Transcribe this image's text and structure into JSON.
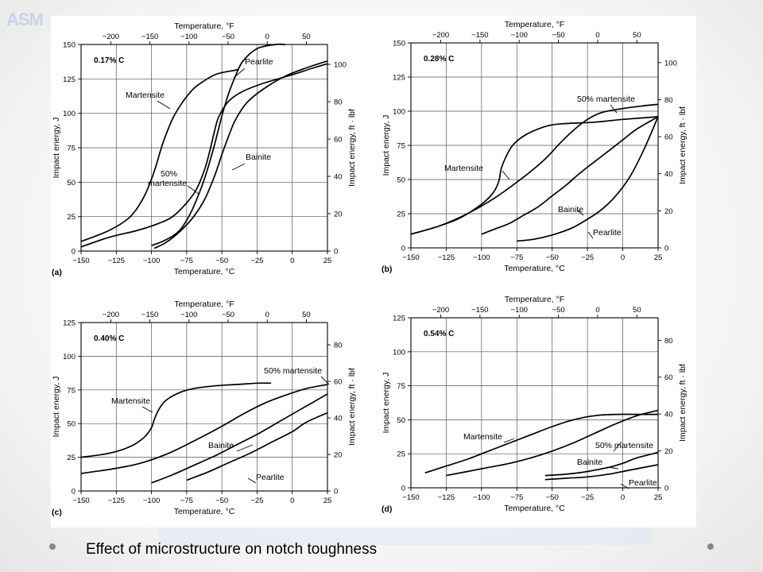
{
  "caption": "Effect of microstructure on notch toughness",
  "chart_data": [
    {
      "type": "line",
      "panel_label": "(a)",
      "carbon_label": "0.17% C",
      "xlabel": "Temperature, °C",
      "top_xlabel": "Temperature, °F",
      "ylabel": "Impact energy, J",
      "right_ylabel": "Impact energy, ft · lbf",
      "xlim": [
        -150,
        25
      ],
      "ylim": [
        0,
        150
      ],
      "x_ticks": [
        -150,
        -125,
        -100,
        -75,
        -50,
        -25,
        0,
        25
      ],
      "y_ticks": [
        0,
        25,
        50,
        75,
        100,
        125,
        150
      ],
      "top_ticks": [
        -200,
        -150,
        -100,
        -50,
        0,
        50
      ],
      "right_ticks": [
        0,
        20,
        40,
        60,
        80,
        100
      ],
      "series": [
        {
          "name": "Martensite",
          "x": [
            -150,
            -130,
            -115,
            -105,
            -98,
            -92,
            -85,
            -78,
            -70,
            -62,
            -55,
            -48,
            -42,
            -38
          ],
          "y": [
            7,
            15,
            25,
            40,
            58,
            78,
            96,
            108,
            118,
            124,
            128,
            130,
            131,
            132
          ]
        },
        {
          "name": "50% martensite",
          "x": [
            -150,
            -130,
            -110,
            -95,
            -85,
            -75,
            -68,
            -62,
            -58,
            -55,
            -52,
            -45,
            -35,
            -20,
            0,
            15,
            25
          ],
          "y": [
            3,
            10,
            15,
            20,
            25,
            35,
            45,
            60,
            75,
            88,
            98,
            109,
            116,
            122,
            128,
            133,
            136
          ]
        },
        {
          "name": "Pearlite",
          "x": [
            -100,
            -90,
            -80,
            -72,
            -65,
            -60,
            -55,
            -50,
            -45,
            -40,
            -35,
            -25,
            -12,
            -5
          ],
          "y": [
            4,
            8,
            15,
            28,
            45,
            60,
            78,
            98,
            115,
            128,
            138,
            147,
            150,
            150
          ]
        },
        {
          "name": "Bainite",
          "x": [
            -98,
            -90,
            -80,
            -70,
            -62,
            -55,
            -50,
            -45,
            -40,
            -32,
            -20,
            -5,
            10,
            25
          ],
          "y": [
            2,
            6,
            14,
            25,
            38,
            55,
            70,
            84,
            96,
            108,
            118,
            127,
            133,
            138
          ]
        }
      ],
      "labels": [
        "Martensite",
        "50%",
        "martensite",
        "Pearlite",
        "Bainite"
      ]
    },
    {
      "type": "line",
      "panel_label": "(b)",
      "carbon_label": "0.28% C",
      "xlabel": "Temperature, °C",
      "top_xlabel": "Temperature, °F",
      "ylabel": "Impact energy, J",
      "right_ylabel": "Impact energy, ft · lbf",
      "xlim": [
        -150,
        25
      ],
      "ylim": [
        0,
        150
      ],
      "x_ticks": [
        -150,
        -125,
        -100,
        -75,
        -50,
        -25,
        0,
        25
      ],
      "y_ticks": [
        0,
        25,
        50,
        75,
        100,
        125,
        150
      ],
      "top_ticks": [
        -200,
        -150,
        -100,
        -50,
        0,
        50
      ],
      "right_ticks": [
        0,
        20,
        40,
        60,
        80,
        100
      ],
      "series": [
        {
          "name": "Martensite",
          "x": [
            -150,
            -130,
            -115,
            -100,
            -92,
            -88,
            -86,
            -83,
            -78,
            -70,
            -60,
            -50,
            -40,
            -20,
            0,
            25
          ],
          "y": [
            10,
            16,
            22,
            32,
            40,
            48,
            58,
            66,
            75,
            82,
            87,
            90,
            91,
            92,
            94,
            96
          ]
        },
        {
          "name": "50% martensite",
          "x": [
            -150,
            -130,
            -110,
            -90,
            -70,
            -55,
            -45,
            -35,
            -25,
            -15,
            0,
            15,
            25
          ],
          "y": [
            10,
            16,
            25,
            37,
            52,
            65,
            76,
            86,
            94,
            99,
            102,
            104,
            105
          ]
        },
        {
          "name": "Bainite",
          "x": [
            -100,
            -90,
            -80,
            -70,
            -60,
            -50,
            -40,
            -30,
            -20,
            -10,
            0,
            10,
            25
          ],
          "y": [
            10,
            14,
            18,
            24,
            30,
            38,
            46,
            55,
            63,
            71,
            79,
            87,
            96
          ]
        },
        {
          "name": "Pearlite",
          "x": [
            -75,
            -65,
            -55,
            -45,
            -35,
            -25,
            -15,
            -5,
            5,
            15,
            25
          ],
          "y": [
            5,
            6,
            8,
            11,
            15,
            21,
            28,
            38,
            52,
            72,
            96
          ]
        }
      ],
      "labels": [
        "Martensite",
        "50% martensite",
        "Bainite",
        "Pearlite"
      ]
    },
    {
      "type": "line",
      "panel_label": "(c)",
      "carbon_label": "0.40% C",
      "xlabel": "Temperature, °C",
      "top_xlabel": "Temperature, °F",
      "ylabel": "Impact energy, J",
      "right_ylabel": "Impact energy, ft · lbf",
      "xlim": [
        -150,
        25
      ],
      "ylim": [
        0,
        125
      ],
      "x_ticks": [
        -150,
        -125,
        -100,
        -75,
        -50,
        -25,
        0,
        25
      ],
      "y_ticks": [
        0,
        25,
        50,
        75,
        100,
        125
      ],
      "top_ticks": [
        -200,
        -150,
        -100,
        -50,
        0,
        50
      ],
      "right_ticks": [
        0,
        20,
        40,
        60,
        80
      ],
      "series": [
        {
          "name": "Martensite",
          "x": [
            -150,
            -130,
            -115,
            -105,
            -100,
            -98,
            -95,
            -90,
            -80,
            -70,
            -55,
            -40,
            -25,
            -15
          ],
          "y": [
            25,
            28,
            33,
            40,
            47,
            53,
            60,
            67,
            73,
            76,
            78,
            79,
            80,
            80
          ]
        },
        {
          "name": "50% martensite",
          "x": [
            -150,
            -130,
            -110,
            -90,
            -70,
            -50,
            -35,
            -20,
            -5,
            10,
            25
          ],
          "y": [
            13,
            16,
            20,
            27,
            37,
            48,
            57,
            65,
            71,
            76,
            79
          ]
        },
        {
          "name": "Bainite",
          "x": [
            -100,
            -85,
            -70,
            -55,
            -40,
            -25,
            -10,
            5,
            15,
            25
          ],
          "y": [
            6,
            12,
            19,
            26,
            34,
            42,
            51,
            60,
            66,
            72
          ]
        },
        {
          "name": "Pearlite",
          "x": [
            -75,
            -60,
            -45,
            -30,
            -15,
            0,
            10,
            25
          ],
          "y": [
            8,
            14,
            21,
            28,
            36,
            44,
            51,
            58
          ]
        }
      ],
      "labels": [
        "Martensite",
        "50% martensite",
        "Bainite",
        "Pearlite"
      ]
    },
    {
      "type": "line",
      "panel_label": "(d)",
      "carbon_label": "0.54% C",
      "xlabel": "Temperature, °C",
      "top_xlabel": "Temperature, °F",
      "ylabel": "Impact energy, J",
      "right_ylabel": "Impact energy, ft · lbf",
      "xlim": [
        -150,
        25
      ],
      "ylim": [
        0,
        125
      ],
      "x_ticks": [
        -150,
        -125,
        -100,
        -75,
        -50,
        -25,
        0,
        25
      ],
      "y_ticks": [
        0,
        25,
        50,
        75,
        100,
        125
      ],
      "top_ticks": [
        -200,
        -150,
        -100,
        -50,
        0,
        50
      ],
      "right_ticks": [
        0,
        20,
        40,
        60,
        80
      ],
      "series": [
        {
          "name": "Martensite",
          "x": [
            -140,
            -125,
            -110,
            -95,
            -80,
            -65,
            -50,
            -35,
            -20,
            -5,
            10,
            25
          ],
          "y": [
            11,
            16,
            21,
            27,
            33,
            39,
            45,
            50,
            53,
            54,
            54,
            54
          ]
        },
        {
          "name": "50% martensite",
          "x": [
            -125,
            -110,
            -95,
            -80,
            -65,
            -50,
            -35,
            -20,
            -5,
            10,
            25
          ],
          "y": [
            9,
            12,
            15,
            18,
            22,
            27,
            33,
            40,
            47,
            53,
            57
          ]
        },
        {
          "name": "Bainite",
          "x": [
            -55,
            -40,
            -25,
            -10,
            0,
            10,
            25
          ],
          "y": [
            9,
            10,
            12,
            15,
            18,
            22,
            26
          ]
        },
        {
          "name": "Pearlite",
          "x": [
            -55,
            -40,
            -25,
            -10,
            0,
            10,
            25
          ],
          "y": [
            6,
            7,
            8,
            10,
            12,
            14,
            17
          ]
        }
      ],
      "labels": [
        "Martensite",
        "50% martensite",
        "Bainite",
        "Pearlite"
      ]
    }
  ]
}
